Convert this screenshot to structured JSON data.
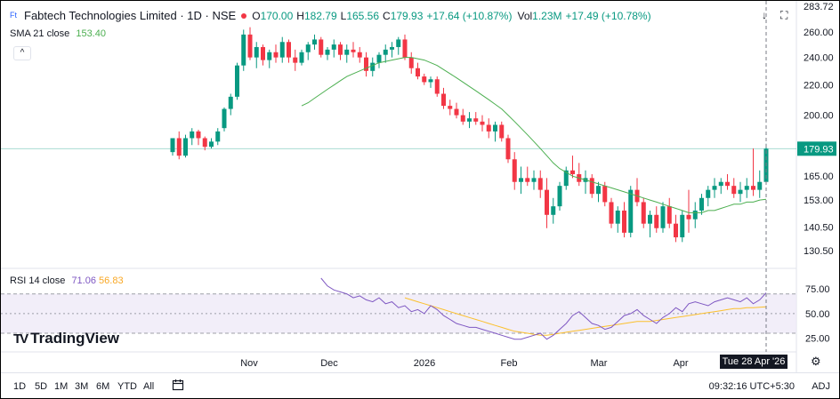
{
  "header": {
    "title": "Fabtech Technologies Limited · 1D · NSE",
    "o_label": "O",
    "o": "170.00",
    "h_label": "H",
    "h": "182.79",
    "l_label": "L",
    "l": "165.56",
    "c_label": "C",
    "c": "179.93",
    "change": "+17.64 (+10.87%)",
    "vol_label": "Vol",
    "vol": "1.23M",
    "vol_change": "+17.49 (+10.78%)"
  },
  "sma": {
    "label": "SMA 21 close",
    "value": "153.40"
  },
  "rsi": {
    "label": "RSI 14 close",
    "value": "71.06",
    "ma_value": "56.83"
  },
  "icons": {
    "collapse": "^",
    "down_arrow": "↓",
    "maximize": "⛶",
    "settings": "⚙",
    "calendar": "📅"
  },
  "branding": {
    "logo_mark": "TV",
    "name": "TradingView"
  },
  "price_axis": {
    "ticks": [
      "260.00",
      "240.00",
      "220.00",
      "200.00",
      "180.00",
      "165.00",
      "153.00",
      "140.50",
      "130.50"
    ],
    "top_partial": "283.72",
    "current_price": "179.93"
  },
  "rsi_axis": {
    "ticks": [
      "75.00",
      "50.00",
      "25.00"
    ]
  },
  "time_axis": {
    "labels": [
      "Nov",
      "Dec",
      "2026",
      "Feb",
      "Mar",
      "Apr"
    ],
    "crosshair_date": "Tue 28 Apr '26"
  },
  "toolbar": {
    "timeframes": [
      "1D",
      "5D",
      "1M",
      "3M",
      "6M",
      "YTD",
      "All"
    ],
    "clock": "09:32:16 UTC+5:30",
    "adj": "ADJ"
  },
  "colors": {
    "up": "#089981",
    "down": "#f23645",
    "sma": "#4caf50",
    "rsi": "#7e57c2",
    "rsi_ma": "#fbc02d",
    "rsi_band": "#ede7f6",
    "price_tag": "#089981"
  },
  "chart_data": {
    "type": "candlestick",
    "yscale": "log",
    "ylim": [
      124,
      283.72
    ],
    "series_candles": [
      [
        178,
        186,
        176,
        186
      ],
      [
        186,
        190,
        174,
        176
      ],
      [
        176,
        188,
        175,
        186
      ],
      [
        186,
        192,
        182,
        190
      ],
      [
        190,
        191,
        182,
        186
      ],
      [
        186,
        187,
        179,
        181
      ],
      [
        181,
        186,
        180,
        184
      ],
      [
        184,
        192,
        182,
        190
      ],
      [
        192,
        205,
        190,
        204
      ],
      [
        204,
        214,
        200,
        212
      ],
      [
        212,
        236,
        210,
        234
      ],
      [
        234,
        262,
        230,
        258
      ],
      [
        258,
        264,
        238,
        240
      ],
      [
        240,
        252,
        232,
        248
      ],
      [
        248,
        250,
        234,
        238
      ],
      [
        238,
        246,
        232,
        244
      ],
      [
        244,
        250,
        236,
        240
      ],
      [
        240,
        256,
        236,
        252
      ],
      [
        252,
        254,
        236,
        240
      ],
      [
        240,
        246,
        230,
        236
      ],
      [
        236,
        246,
        234,
        244
      ],
      [
        244,
        252,
        238,
        250
      ],
      [
        250,
        258,
        246,
        254
      ],
      [
        254,
        256,
        240,
        242
      ],
      [
        242,
        248,
        238,
        246
      ],
      [
        246,
        254,
        240,
        250
      ],
      [
        250,
        252,
        238,
        242
      ],
      [
        242,
        250,
        236,
        246
      ],
      [
        246,
        252,
        240,
        244
      ],
      [
        244,
        248,
        236,
        240
      ],
      [
        240,
        244,
        226,
        230
      ],
      [
        230,
        240,
        226,
        236
      ],
      [
        236,
        244,
        232,
        242
      ],
      [
        242,
        250,
        236,
        246
      ],
      [
        246,
        252,
        240,
        248
      ],
      [
        248,
        256,
        242,
        254
      ],
      [
        254,
        258,
        238,
        240
      ],
      [
        240,
        244,
        228,
        232
      ],
      [
        232,
        236,
        224,
        226
      ],
      [
        226,
        228,
        220,
        222
      ],
      [
        222,
        226,
        218,
        224
      ],
      [
        224,
        226,
        212,
        214
      ],
      [
        214,
        218,
        204,
        206
      ],
      [
        206,
        210,
        200,
        204
      ],
      [
        204,
        208,
        198,
        200
      ],
      [
        200,
        204,
        194,
        196
      ],
      [
        196,
        202,
        192,
        198
      ],
      [
        198,
        202,
        194,
        196
      ],
      [
        196,
        200,
        190,
        194
      ],
      [
        194,
        198,
        186,
        190
      ],
      [
        190,
        196,
        184,
        194
      ],
      [
        194,
        196,
        184,
        186
      ],
      [
        186,
        188,
        172,
        174
      ],
      [
        174,
        178,
        158,
        162
      ],
      [
        162,
        170,
        156,
        164
      ],
      [
        164,
        170,
        160,
        162
      ],
      [
        162,
        168,
        158,
        164
      ],
      [
        164,
        168,
        154,
        158
      ],
      [
        158,
        164,
        140,
        146
      ],
      [
        146,
        154,
        142,
        150
      ],
      [
        150,
        162,
        148,
        160
      ],
      [
        160,
        170,
        158,
        168
      ],
      [
        168,
        176,
        164,
        166
      ],
      [
        166,
        172,
        160,
        162
      ],
      [
        162,
        168,
        156,
        164
      ],
      [
        164,
        166,
        154,
        156
      ],
      [
        156,
        162,
        152,
        160
      ],
      [
        160,
        162,
        150,
        152
      ],
      [
        152,
        154,
        140,
        142
      ],
      [
        142,
        150,
        138,
        148
      ],
      [
        148,
        152,
        136,
        138
      ],
      [
        138,
        160,
        136,
        158
      ],
      [
        158,
        164,
        150,
        152
      ],
      [
        152,
        154,
        140,
        142
      ],
      [
        142,
        148,
        136,
        146
      ],
      [
        146,
        150,
        138,
        140
      ],
      [
        140,
        152,
        138,
        150
      ],
      [
        150,
        154,
        140,
        142
      ],
      [
        142,
        146,
        134,
        136
      ],
      [
        136,
        148,
        134,
        146
      ],
      [
        146,
        158,
        138,
        144
      ],
      [
        144,
        152,
        140,
        148
      ],
      [
        148,
        156,
        146,
        154
      ],
      [
        154,
        160,
        150,
        158
      ],
      [
        158,
        164,
        154,
        160
      ],
      [
        160,
        164,
        156,
        162
      ],
      [
        162,
        166,
        158,
        160
      ],
      [
        160,
        164,
        154,
        156
      ],
      [
        156,
        162,
        152,
        158
      ],
      [
        158,
        164,
        154,
        160
      ],
      [
        160,
        180,
        155,
        158
      ],
      [
        158,
        168,
        154,
        162
      ],
      [
        162,
        182.79,
        165.56,
        179.93
      ]
    ],
    "sma_values": [
      null,
      null,
      null,
      null,
      null,
      null,
      null,
      null,
      null,
      null,
      null,
      null,
      null,
      null,
      null,
      null,
      null,
      null,
      null,
      null,
      206,
      208,
      211,
      214,
      217,
      220,
      223,
      226,
      228,
      230,
      232,
      234,
      236,
      237,
      238,
      239,
      240,
      240,
      239,
      238,
      236,
      234,
      231,
      228,
      225,
      222,
      219,
      216,
      213,
      210,
      207,
      204,
      200,
      196,
      192,
      188,
      184,
      180,
      176,
      172,
      169,
      167,
      165,
      164,
      163,
      162,
      161,
      160,
      159,
      158,
      157,
      156,
      155,
      154,
      153,
      152,
      151,
      150,
      149,
      148,
      147,
      147,
      147,
      148,
      148,
      149,
      150,
      151,
      151,
      152,
      152,
      153,
      153.4
    ],
    "rsi_values": [
      null,
      null,
      null,
      null,
      null,
      null,
      null,
      null,
      null,
      null,
      null,
      null,
      null,
      null,
      null,
      null,
      null,
      null,
      null,
      null,
      null,
      null,
      null,
      86,
      78,
      74,
      72,
      70,
      66,
      68,
      64,
      62,
      66,
      60,
      62,
      56,
      58,
      52,
      54,
      50,
      58,
      54,
      48,
      44,
      40,
      38,
      36,
      36,
      34,
      32,
      30,
      28,
      26,
      24,
      24,
      26,
      28,
      30,
      24,
      28,
      34,
      40,
      48,
      52,
      46,
      40,
      38,
      34,
      36,
      42,
      48,
      50,
      54,
      48,
      44,
      40,
      46,
      50,
      56,
      52,
      60,
      62,
      60,
      58,
      62,
      64,
      66,
      64,
      62,
      66,
      60,
      64,
      71.06
    ],
    "rsi_ma_values": [
      null,
      null,
      null,
      null,
      null,
      null,
      null,
      null,
      null,
      null,
      null,
      null,
      null,
      null,
      null,
      null,
      null,
      null,
      null,
      null,
      null,
      null,
      null,
      null,
      null,
      null,
      null,
      null,
      null,
      null,
      null,
      null,
      null,
      null,
      null,
      null,
      66,
      64,
      62,
      60,
      58,
      56,
      54,
      52,
      50,
      48,
      46,
      44,
      42,
      40,
      38,
      36,
      34,
      32,
      31,
      30,
      29,
      28,
      28,
      29,
      30,
      31,
      32,
      33,
      34,
      35,
      36,
      37,
      38,
      39,
      40,
      41,
      42,
      42,
      42,
      43,
      44,
      45,
      46,
      47,
      48,
      49,
      50,
      51,
      52,
      53,
      54,
      55,
      55,
      56,
      56,
      56.5,
      56.83
    ],
    "rsi_bands": [
      70,
      50,
      30
    ],
    "rsi_ylim": [
      12,
      95
    ]
  }
}
